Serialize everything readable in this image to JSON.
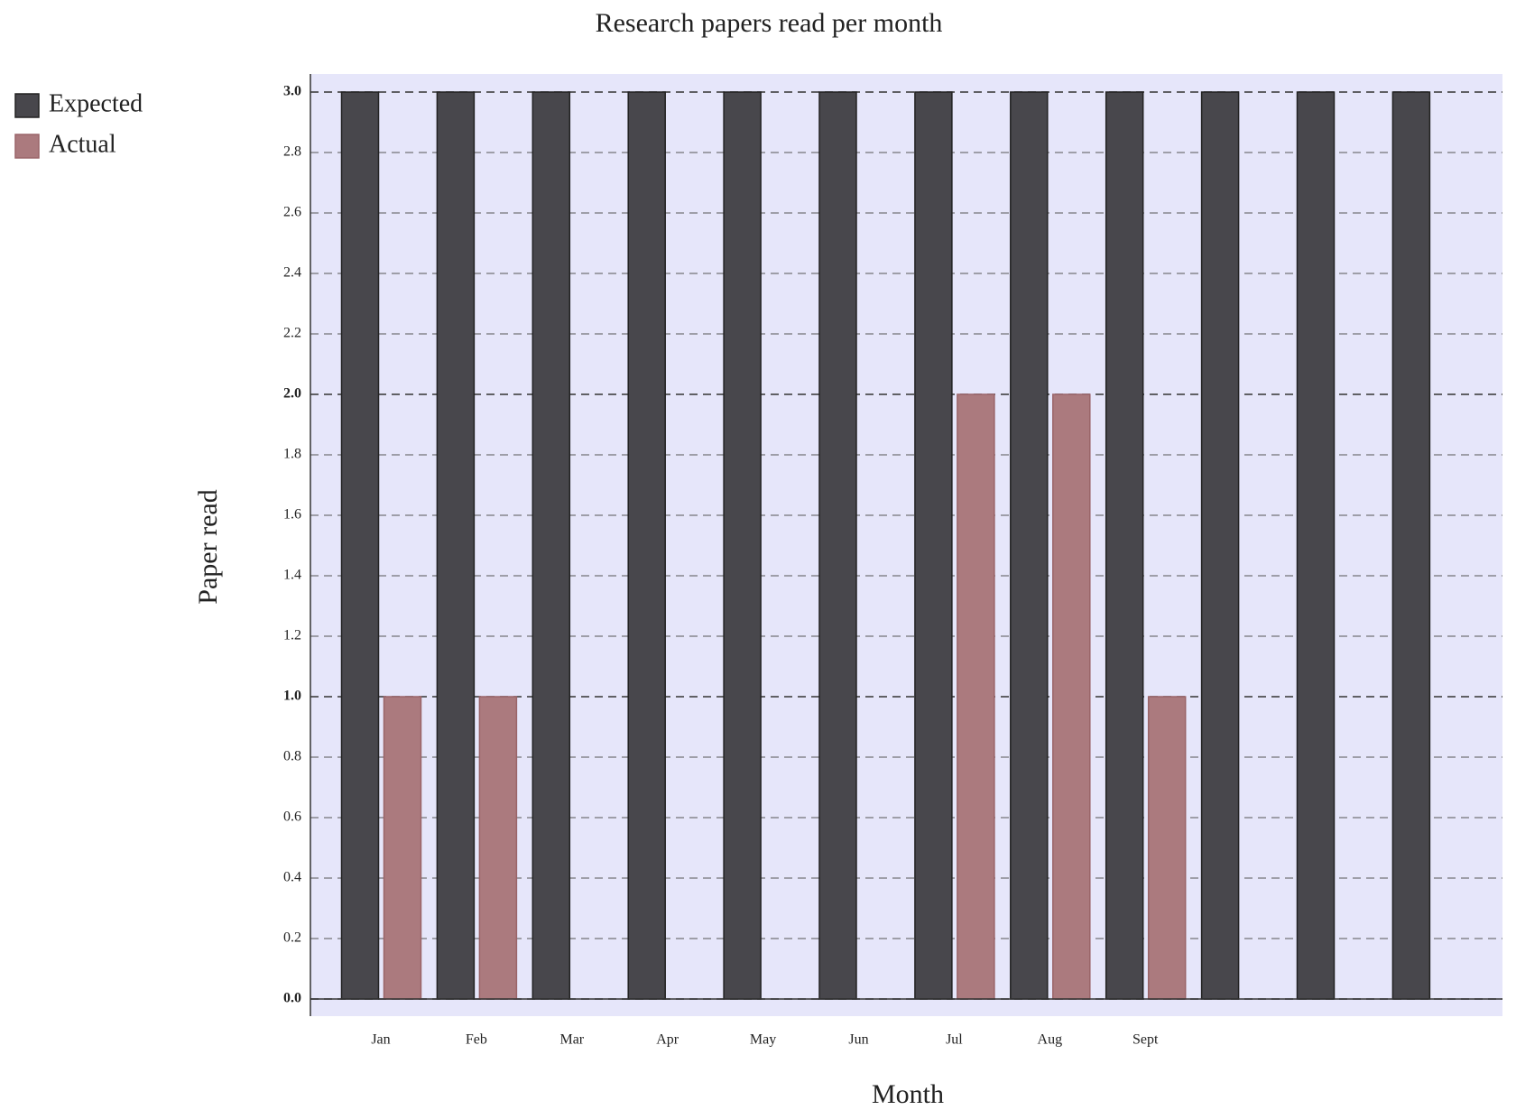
{
  "chart_data": {
    "type": "bar",
    "title": "Research papers read per month",
    "xlabel": "Month",
    "ylabel": "Paper read",
    "categories": [
      "Jan",
      "Feb",
      "Mar",
      "Apr",
      "May",
      "Jun",
      "Jul",
      "Aug",
      "Sept",
      null,
      null,
      null
    ],
    "series": [
      {
        "name": "Expected",
        "color": "#48474c",
        "values": [
          3,
          3,
          3,
          3,
          3,
          3,
          3,
          3,
          3,
          3,
          3,
          3
        ]
      },
      {
        "name": "Actual",
        "color": "#ab7a7e",
        "values": [
          1,
          1,
          0,
          0,
          0,
          0,
          2,
          2,
          1,
          null,
          null,
          null
        ]
      }
    ],
    "ylim": [
      0,
      3
    ],
    "yticks": [
      {
        "value": 0,
        "label": "0.0"
      },
      {
        "value": 0.2,
        "label": "0.2"
      },
      {
        "value": 0.4,
        "label": "0.4"
      },
      {
        "value": 0.6,
        "label": "0.6"
      },
      {
        "value": 0.8,
        "label": "0.8"
      },
      {
        "value": 1,
        "label": "1.0"
      },
      {
        "value": 1.2,
        "label": "1.2"
      },
      {
        "value": 1.4,
        "label": "1.4"
      },
      {
        "value": 1.6,
        "label": "1.6"
      },
      {
        "value": 1.8,
        "label": "1.8"
      },
      {
        "value": 2,
        "label": "2.0"
      },
      {
        "value": 2.2,
        "label": "2.2"
      },
      {
        "value": 2.4,
        "label": "2.4"
      },
      {
        "value": 2.6,
        "label": "2.6"
      },
      {
        "value": 2.8,
        "label": "2.8"
      },
      {
        "value": 3,
        "label": "3.0"
      }
    ],
    "grid": true,
    "legend": "upper left"
  }
}
